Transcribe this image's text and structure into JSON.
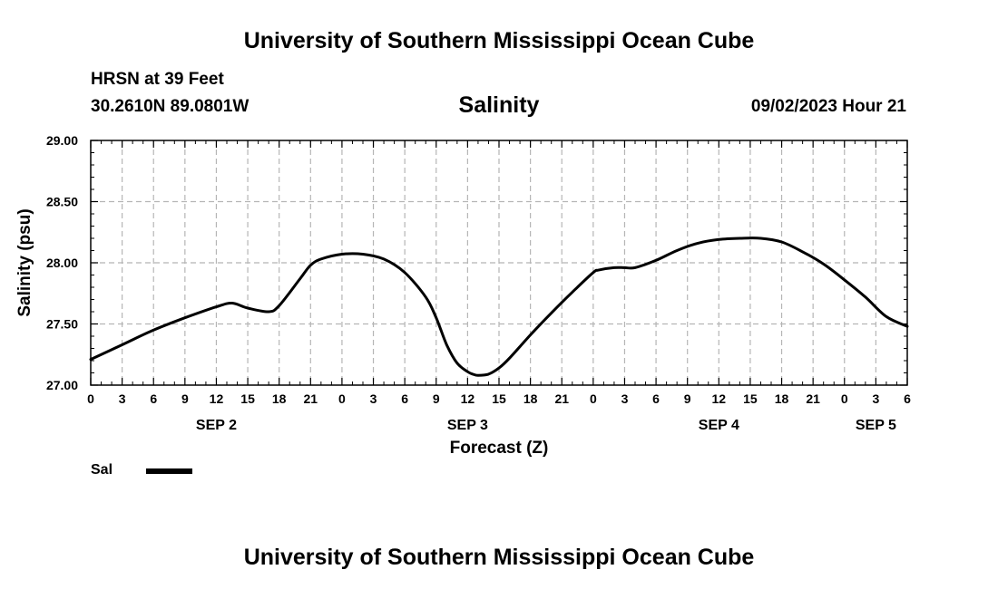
{
  "header": {
    "title": "University of Southern Mississippi Ocean Cube",
    "station": "HRSN at 39 Feet",
    "coords": "30.2610N  89.0801W",
    "datetime": "09/02/2023 Hour 21"
  },
  "footer": {
    "title": "University of Southern Mississippi Ocean Cube"
  },
  "legend": {
    "label": "Sal"
  },
  "chart_data": {
    "type": "line",
    "title": "Salinity",
    "xlabel": "Forecast (Z)",
    "ylabel": "Salinity (psu)",
    "xlim": [
      0,
      78
    ],
    "ylim": [
      27.0,
      29.0
    ],
    "grid": true,
    "y_ticks": [
      "27.00",
      "27.50",
      "28.00",
      "28.50",
      "29.00"
    ],
    "x_ticks": [
      "0",
      "3",
      "6",
      "9",
      "12",
      "15",
      "18",
      "21",
      "0",
      "3",
      "6",
      "9",
      "12",
      "15",
      "18",
      "21",
      "0",
      "3",
      "6",
      "9",
      "12",
      "15",
      "18",
      "21",
      "0",
      "3",
      "6"
    ],
    "day_labels": [
      {
        "label": "SEP 2",
        "x": 12
      },
      {
        "label": "SEP 3",
        "x": 36
      },
      {
        "label": "SEP 4",
        "x": 60
      },
      {
        "label": "SEP 5",
        "x": 75
      }
    ],
    "series": [
      {
        "name": "Sal",
        "color": "#000000",
        "x": [
          0,
          3,
          6,
          9,
          12,
          13.5,
          15,
          17,
          18,
          20,
          21,
          22,
          24,
          26,
          28,
          30,
          32,
          33,
          34,
          35,
          36,
          36.5,
          37,
          38,
          39,
          40,
          42,
          44,
          46,
          48,
          48.5,
          50,
          51,
          52,
          54,
          56,
          58,
          60,
          62,
          64,
          66,
          68,
          70,
          72,
          74,
          76,
          78
        ],
        "values": [
          27.21,
          27.33,
          27.45,
          27.55,
          27.64,
          27.67,
          27.63,
          27.6,
          27.65,
          27.87,
          27.98,
          28.03,
          28.07,
          28.07,
          28.03,
          27.92,
          27.72,
          27.55,
          27.33,
          27.18,
          27.11,
          27.09,
          27.08,
          27.09,
          27.14,
          27.22,
          27.41,
          27.59,
          27.76,
          27.92,
          27.94,
          27.96,
          27.96,
          27.96,
          28.02,
          28.1,
          28.16,
          28.19,
          28.2,
          28.2,
          28.17,
          28.09,
          27.99,
          27.86,
          27.72,
          27.56,
          27.48
        ]
      }
    ]
  }
}
